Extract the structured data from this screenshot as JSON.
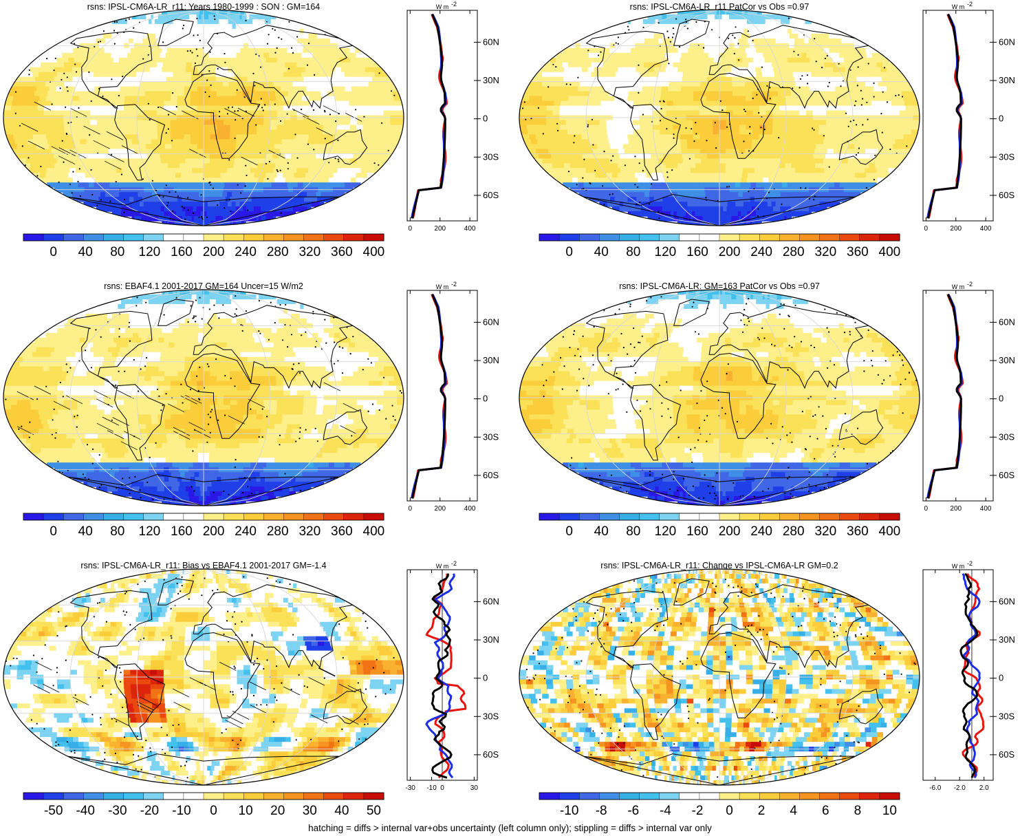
{
  "palette": [
    "#2a18e6",
    "#1f3fe8",
    "#3f67e6",
    "#3f8fe6",
    "#38aee7",
    "#43c0ee",
    "#7cd3f2",
    "#ffffff",
    "#ffffff",
    "#fdf08a",
    "#fbe158",
    "#fbcd3b",
    "#f8b230",
    "#f59420",
    "#f27315",
    "#ea4a0e",
    "#dc250a",
    "#c80d08"
  ],
  "colors": {
    "obs_line": "#e8140c",
    "model_line": "#1a2ee6",
    "mean_line": "#000000",
    "grid": "#d7d7d7"
  },
  "profile_unit": "W m",
  "profile_unit_sup": "-2",
  "lat_labels": [
    "60N",
    "30N",
    "0",
    "30S",
    "60S"
  ],
  "footnote": "hatching = diffs > internal var+obs uncertainty (left column only); stippling = diffs > internal var only",
  "chart_data": [
    {
      "type": "heatmap",
      "title": "rsns: IPSL-CM6A-LR_r11: Years 1980-1999 : SON : GM=164",
      "field": "climatology",
      "colorbar": {
        "labels": [
          "0",
          "40",
          "80",
          "120",
          "160",
          "200",
          "240",
          "280",
          "320",
          "360",
          "400"
        ],
        "range": [
          -20,
          420
        ]
      },
      "profile": {
        "xticks": [
          "0",
          "200",
          "400"
        ],
        "xlim": [
          -20,
          450
        ],
        "ylim": [
          -80,
          85
        ]
      }
    },
    {
      "type": "heatmap",
      "title": "rsns: IPSL-CM6A-LR_r11 PatCor vs Obs =0.97",
      "field": "climatology",
      "colorbar": {
        "labels": [
          "0",
          "40",
          "80",
          "120",
          "160",
          "200",
          "240",
          "280",
          "320",
          "360",
          "400"
        ],
        "range": [
          -20,
          420
        ]
      },
      "profile": {
        "xticks": [
          "0",
          "200",
          "400"
        ],
        "xlim": [
          -20,
          450
        ],
        "ylim": [
          -80,
          85
        ]
      }
    },
    {
      "type": "heatmap",
      "title": "rsns: EBAF4.1 2001-2017 GM=164 Uncer=15 W/m2",
      "field": "climatology",
      "colorbar": {
        "labels": [
          "0",
          "40",
          "80",
          "120",
          "160",
          "200",
          "240",
          "280",
          "320",
          "360",
          "400"
        ],
        "range": [
          -20,
          420
        ]
      },
      "profile": {
        "xticks": [
          "0",
          "200",
          "400"
        ],
        "xlim": [
          -20,
          450
        ],
        "ylim": [
          -80,
          85
        ]
      }
    },
    {
      "type": "heatmap",
      "title": "rsns: IPSL-CM6A-LR: GM=163 PatCor vs Obs =0.97",
      "field": "climatology",
      "colorbar": {
        "labels": [
          "0",
          "40",
          "80",
          "120",
          "160",
          "200",
          "240",
          "280",
          "320",
          "360",
          "400"
        ],
        "range": [
          -20,
          420
        ]
      },
      "profile": {
        "xticks": [
          "0",
          "200",
          "400"
        ],
        "xlim": [
          -20,
          450
        ],
        "ylim": [
          -80,
          85
        ]
      }
    },
    {
      "type": "heatmap",
      "title": "rsns: IPSL-CM6A-LR_r11: Bias vs EBAF4.1 2001-2017  GM=-1.4",
      "field": "bias",
      "colorbar": {
        "labels": [
          "-50",
          "-40",
          "-30",
          "-20",
          "-10",
          "0",
          "10",
          "20",
          "30",
          "40",
          "50"
        ],
        "range": [
          -55,
          55
        ]
      },
      "profile": {
        "xticks": [
          "-30",
          "-10",
          "0",
          "30"
        ],
        "xlim": [
          -33,
          33
        ],
        "ylim": [
          -80,
          85
        ]
      }
    },
    {
      "type": "heatmap",
      "title": "rsns: IPSL-CM6A-LR_r11: Change vs IPSL-CM6A-LR GM=0.2",
      "field": "change",
      "colorbar": {
        "labels": [
          "-10",
          "-8",
          "-6",
          "-4",
          "-2",
          "0",
          "2",
          "4",
          "6",
          "8",
          "10"
        ],
        "range": [
          -11,
          11
        ]
      },
      "profile": {
        "xticks": [
          "-6.0",
          "-2.0",
          "2.0"
        ],
        "xlim": [
          -8,
          3.5
        ],
        "ylim": [
          -80,
          85
        ]
      }
    }
  ]
}
